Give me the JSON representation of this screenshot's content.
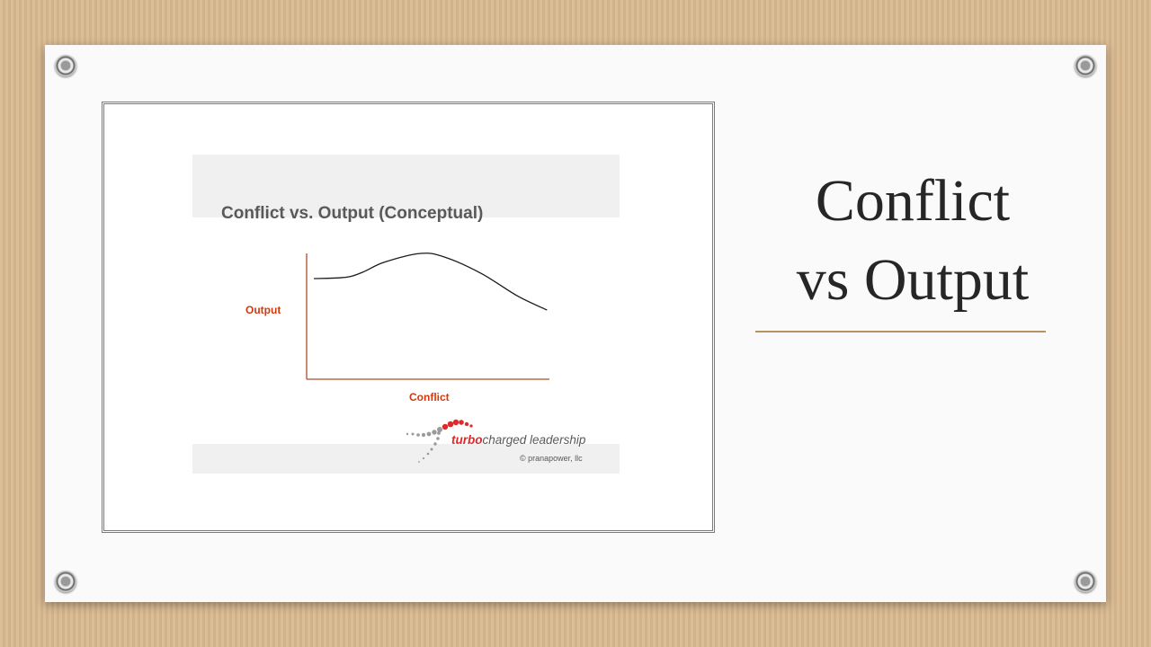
{
  "slide": {
    "title_line1": "Conflict",
    "title_line2": "vs Output"
  },
  "chart_data": {
    "type": "line",
    "title": "Conflict vs. Output (Conceptual)",
    "xlabel": "Conflict",
    "ylabel": "Output",
    "xlim": [
      0,
      10
    ],
    "ylim": [
      0,
      10
    ],
    "grid": false,
    "axis_ticks": false,
    "series": [
      {
        "x": [
          0.3,
          1.6,
          2.3,
          3.2,
          4.7,
          5.7,
          7.2,
          8.7,
          9.9
        ],
        "y": [
          8.0,
          8.1,
          8.5,
          9.3,
          10.0,
          9.7,
          8.4,
          6.6,
          5.5
        ]
      }
    ],
    "logo": {
      "text_bold": "turbo",
      "text_rest": "charged  leadership"
    },
    "copyright": "© pranapower, llc",
    "colors": {
      "axis": "#b04a2b",
      "label": "#d4380d",
      "curve": "#1a1a1a",
      "title": "#595959",
      "logo_red": "#e0282a"
    }
  }
}
